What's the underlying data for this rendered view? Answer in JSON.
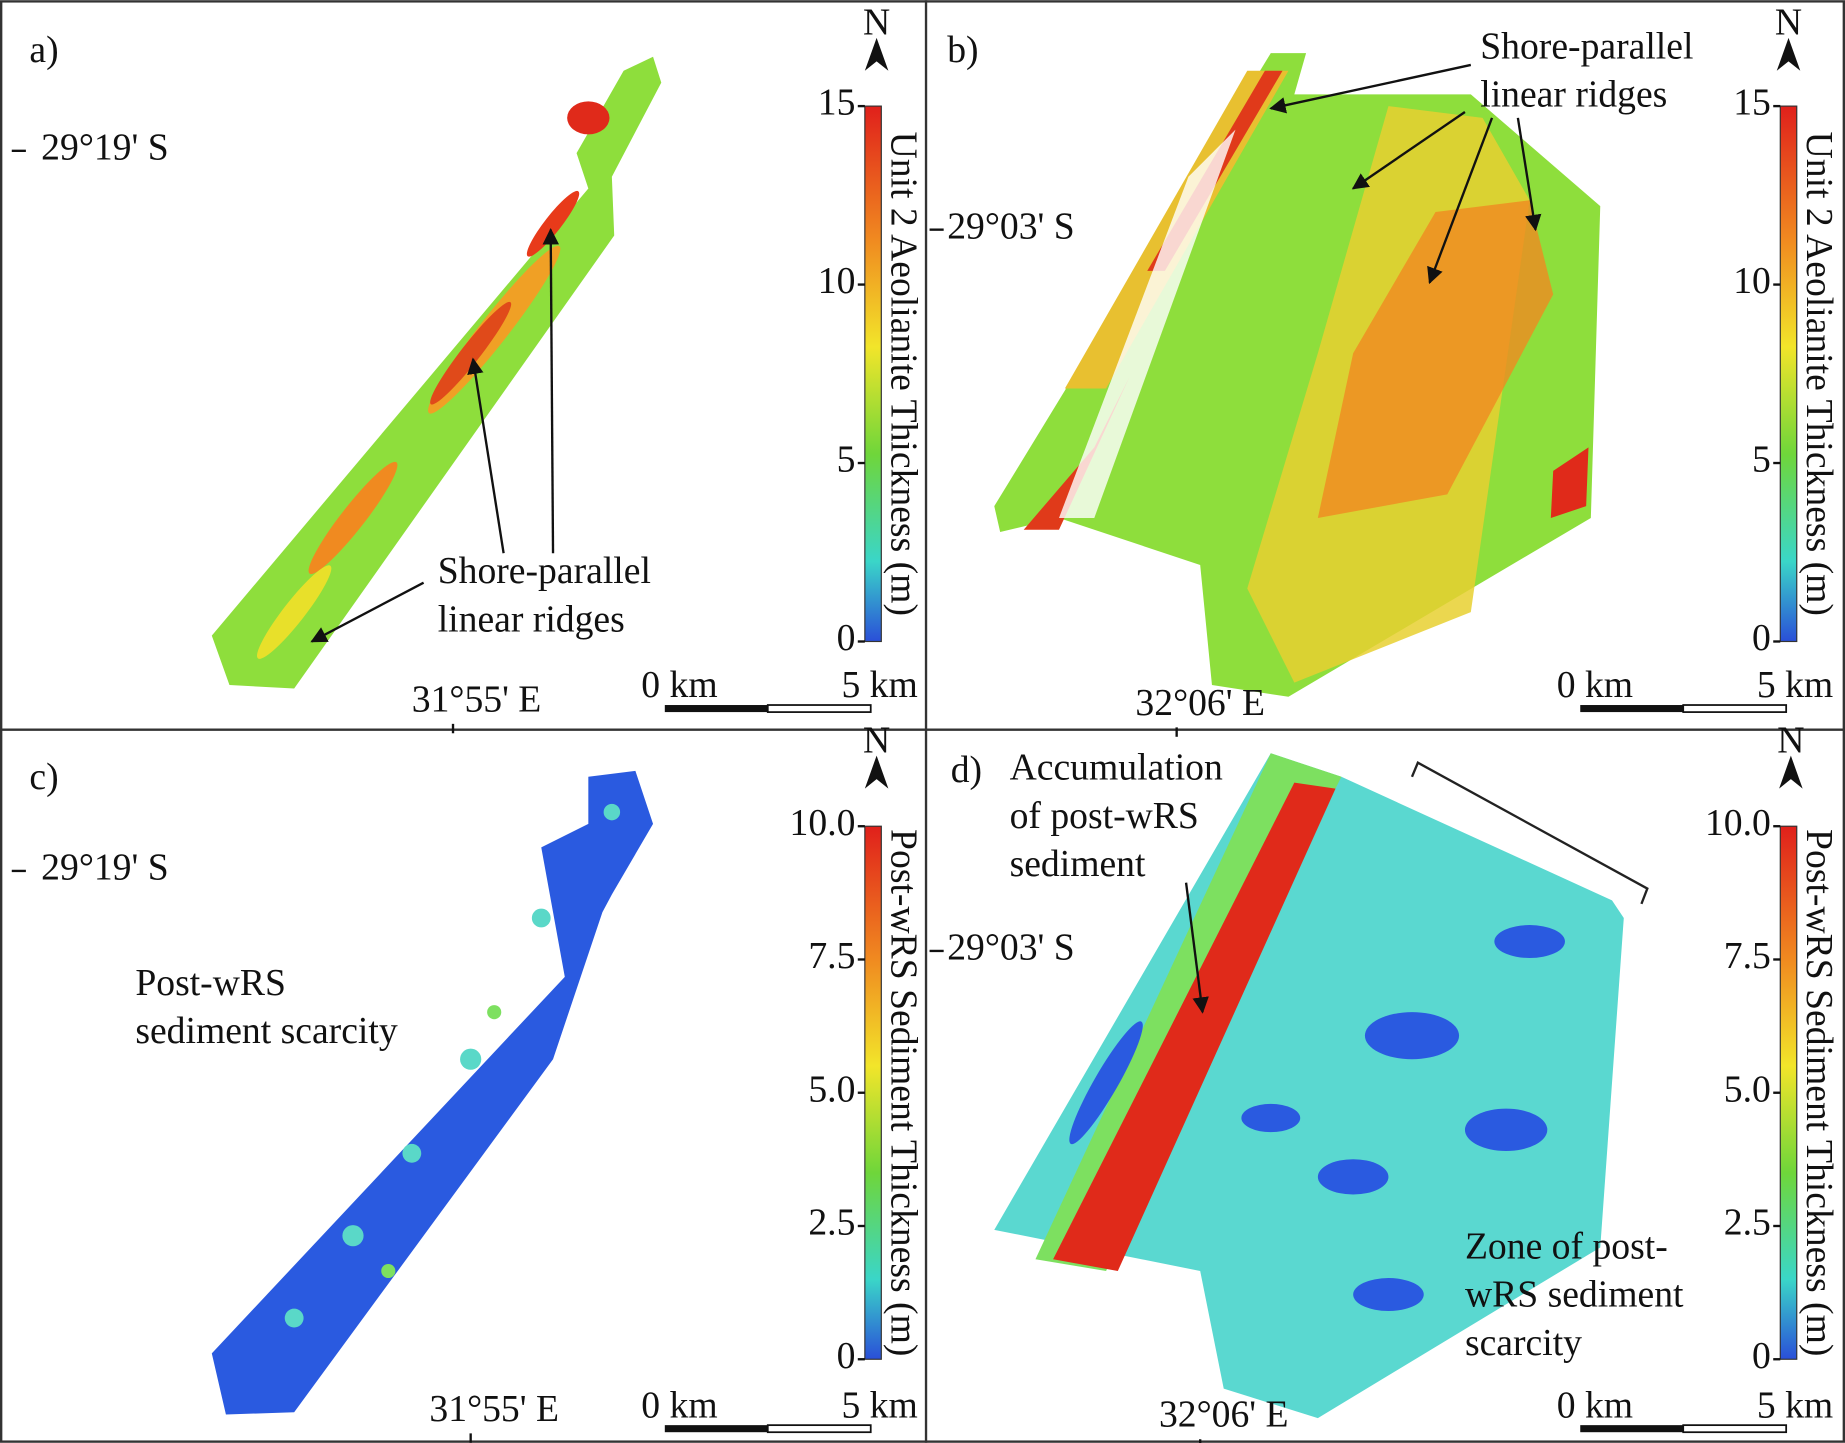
{
  "panels": [
    {
      "label": "a)",
      "latitude": "29°19' S",
      "longitude": "31°55' E",
      "north": "N",
      "colorbar": {
        "title": "Unit 2 Aeolianite Thickness (m)",
        "ticks": [
          "15",
          "10",
          "5",
          "0"
        ]
      },
      "scale": [
        "0 km",
        "5 km"
      ],
      "annotations": [
        [
          "Shore-parallel",
          "linear ridges"
        ]
      ]
    },
    {
      "label": "b)",
      "latitude": "29°03' S",
      "longitude": "32°06' E",
      "north": "N",
      "colorbar": {
        "title": "Unit 2 Aeolianite Thickness (m)",
        "ticks": [
          "15",
          "10",
          "5",
          "0"
        ]
      },
      "scale": [
        "0 km",
        "5 km"
      ],
      "annotations": [
        [
          "Shore-parallel",
          "linear ridges"
        ]
      ]
    },
    {
      "label": "c)",
      "latitude": "29°19' S",
      "longitude": "31°55' E",
      "north": "N",
      "colorbar": {
        "title": "Post-wRS Sediment Thickness (m)",
        "ticks": [
          "10.0",
          "7.5",
          "5.0",
          "2.5",
          "0"
        ]
      },
      "scale": [
        "0 km",
        "5 km"
      ],
      "annotations": [
        [
          "Post-wRS",
          "sediment scarcity"
        ]
      ]
    },
    {
      "label": "d)",
      "latitude": "29°03' S",
      "longitude": "32°06' E",
      "north": "N",
      "colorbar": {
        "title": "Post-wRS Sediment Thickness (m)",
        "ticks": [
          "10.0",
          "7.5",
          "5.0",
          "2.5",
          "0"
        ]
      },
      "scale": [
        "0 km",
        "5 km"
      ],
      "annotations": [
        [
          "Accumulation",
          "of post-wRS",
          "sediment"
        ],
        [
          "Zone of post-",
          "wRS sediment",
          "scarcity"
        ]
      ]
    }
  ]
}
